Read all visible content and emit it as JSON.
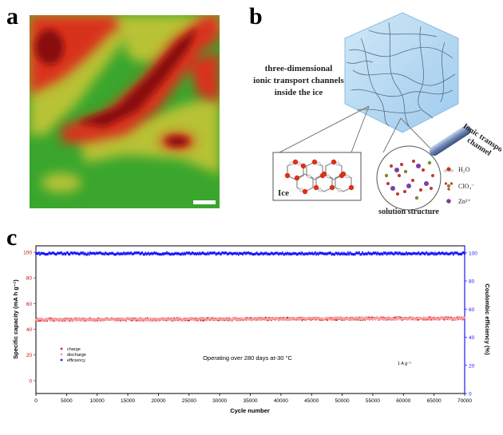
{
  "panels": {
    "a": {
      "letter": "a",
      "scalebar": "scale-bar"
    },
    "b": {
      "letter": "b",
      "caption_lines": [
        "three-dimensional",
        "ionic transport channels",
        "inside the ice"
      ],
      "ice_label": "Ice",
      "solution_label": "solution structure",
      "channel_label_lines": [
        "Ionic transport",
        "channel"
      ],
      "legend": [
        {
          "label": "H₂O",
          "color": "#c0392b"
        },
        {
          "label": "ClO₄⁻",
          "color": "#7f8c2d"
        },
        {
          "label": "Zn²⁺",
          "color": "#7b3fa0"
        }
      ]
    },
    "c": {
      "letter": "c"
    }
  },
  "chart_data": {
    "type": "scatter",
    "xlabel": "Cycle number",
    "ylabel_left": "Specific capacity (mA h g⁻¹)",
    "ylabel_right": "Coulombic efficiency (%)",
    "xlim": [
      0,
      70000
    ],
    "ylim_left": [
      -10,
      105
    ],
    "ylim_right": [
      0,
      105
    ],
    "x_ticks": [
      "0",
      "5000",
      "10000",
      "15000",
      "20000",
      "25000",
      "30000",
      "35000",
      "40000",
      "45000",
      "50000",
      "55000",
      "60000",
      "65000",
      "70000"
    ],
    "y_left_ticks": [
      "0",
      "20",
      "40",
      "60",
      "80",
      "100"
    ],
    "y_right_ticks": [
      "0",
      "20",
      "40",
      "60",
      "80",
      "100"
    ],
    "annotation": "Operating over 280 days at-30 °C",
    "rate": "1 A g⁻¹",
    "series": [
      {
        "name": "charge",
        "color": "#e02020",
        "axis": "left",
        "x_start": 0,
        "x_end": 70000,
        "y_start": 47.5,
        "y_end": 48.5
      },
      {
        "name": "discharge",
        "color": "#f4a0a0",
        "axis": "left",
        "x_start": 0,
        "x_end": 70000,
        "y_start": 47.5,
        "y_end": 48.5
      },
      {
        "name": "efficiency",
        "color": "#1a1aff",
        "axis": "right",
        "x_start": 0,
        "x_end": 70000,
        "y_start": 99.5,
        "y_end": 99.5
      }
    ]
  }
}
